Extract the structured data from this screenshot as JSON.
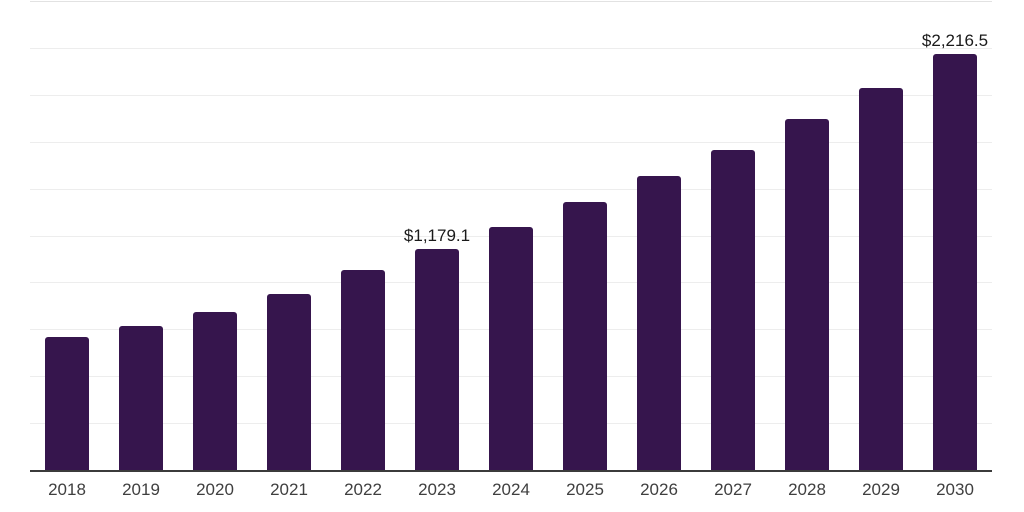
{
  "chart_data": {
    "type": "bar",
    "title": "",
    "xlabel": "",
    "ylabel": "",
    "categories": [
      "2018",
      "2019",
      "2020",
      "2021",
      "2022",
      "2023",
      "2024",
      "2025",
      "2026",
      "2027",
      "2028",
      "2029",
      "2030"
    ],
    "values": [
      709,
      768,
      842,
      938,
      1066,
      1179.1,
      1295,
      1429,
      1567,
      1706,
      1871,
      2036,
      2216.5
    ],
    "data_labels": [
      "",
      "",
      "",
      "",
      "",
      "$1,179.1",
      "",
      "",
      "",
      "",
      "",
      "",
      "$2,216.5"
    ],
    "ylim": [
      0,
      2500
    ],
    "gridline_step": 250,
    "grid_visible": true,
    "y_tick_labels_visible": false,
    "legend": "none",
    "colors": {
      "bar": "#36154d",
      "gridline": "#ededed",
      "gridline_top": "#e2e2e2",
      "axis_line": "#3b3b3b",
      "x_tick_label": "#3f3f3f",
      "data_label": "#1a1a1a",
      "background": "#ffffff"
    }
  }
}
